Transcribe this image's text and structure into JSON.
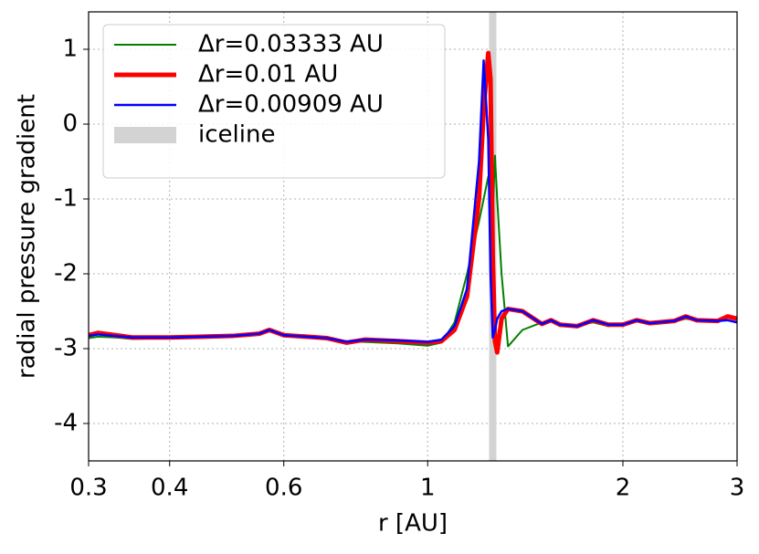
{
  "chart_data": {
    "type": "line",
    "xlabel": "r [AU]",
    "ylabel": "radial pressure gradient",
    "xscale": "log",
    "xlim": [
      0.3,
      3
    ],
    "xticks": [
      0.3,
      0.4,
      0.6,
      1,
      2,
      3
    ],
    "ylim": [
      -4.5,
      1.5
    ],
    "yticks": [
      -4,
      -3,
      -2,
      -1,
      0,
      1
    ],
    "grid": true,
    "legend": "upper left",
    "x": [
      0.3,
      0.31,
      0.33,
      0.35,
      0.4,
      0.45,
      0.5,
      0.55,
      0.57,
      0.6,
      0.65,
      0.7,
      0.75,
      0.8,
      0.9,
      1.0,
      1.05,
      1.1,
      1.15,
      1.2,
      1.22,
      1.24,
      1.25,
      1.26,
      1.27,
      1.28,
      1.3,
      1.33,
      1.4,
      1.5,
      1.55,
      1.6,
      1.7,
      1.8,
      1.9,
      2.0,
      2.1,
      2.2,
      2.4,
      2.5,
      2.6,
      2.8,
      2.9,
      3.0
    ],
    "series": [
      {
        "name": "Δr=0.03333 AU",
        "color": "#008000",
        "width": 2,
        "values": [
          -2.86,
          -2.84,
          -2.85,
          -2.87,
          -2.86,
          -2.85,
          -2.84,
          -2.81,
          -2.77,
          -2.82,
          -2.85,
          -2.87,
          -2.9,
          -2.91,
          -2.93,
          -2.96,
          -2.92,
          -2.65,
          -2.0,
          -1.3,
          -1.0,
          -0.7,
          -0.8,
          -1.2,
          -0.42,
          -1.0,
          -2.0,
          -2.97,
          -2.75,
          -2.65,
          -2.64,
          -2.7,
          -2.68,
          -2.65,
          -2.7,
          -2.66,
          -2.62,
          -2.67,
          -2.64,
          -2.6,
          -2.62,
          -2.64,
          -2.56,
          -2.62
        ]
      },
      {
        "name": "Δr=0.01 AU",
        "color": "#ff0000",
        "width": 5,
        "values": [
          -2.82,
          -2.79,
          -2.82,
          -2.85,
          -2.85,
          -2.84,
          -2.83,
          -2.8,
          -2.75,
          -2.82,
          -2.84,
          -2.86,
          -2.92,
          -2.88,
          -2.9,
          -2.92,
          -2.9,
          -2.75,
          -2.3,
          -1.0,
          0.2,
          0.95,
          0.6,
          -1.8,
          -2.9,
          -3.05,
          -2.6,
          -2.47,
          -2.5,
          -2.67,
          -2.62,
          -2.68,
          -2.7,
          -2.62,
          -2.68,
          -2.68,
          -2.62,
          -2.66,
          -2.63,
          -2.57,
          -2.62,
          -2.63,
          -2.57,
          -2.6
        ]
      },
      {
        "name": "Δr=0.00909 AU",
        "color": "#0000ff",
        "width": 2.5,
        "values": [
          -2.83,
          -2.81,
          -2.83,
          -2.85,
          -2.85,
          -2.84,
          -2.83,
          -2.8,
          -2.75,
          -2.82,
          -2.84,
          -2.86,
          -2.91,
          -2.88,
          -2.89,
          -2.91,
          -2.88,
          -2.7,
          -2.2,
          -0.5,
          0.85,
          -0.2,
          -2.0,
          -2.85,
          -2.75,
          -2.6,
          -2.5,
          -2.47,
          -2.5,
          -2.67,
          -2.62,
          -2.68,
          -2.7,
          -2.62,
          -2.68,
          -2.68,
          -2.62,
          -2.66,
          -2.63,
          -2.57,
          -2.62,
          -2.63,
          -2.62,
          -2.65
        ]
      }
    ],
    "iceline": {
      "name": "iceline",
      "x": 1.26,
      "color": "#d3d3d3"
    }
  }
}
